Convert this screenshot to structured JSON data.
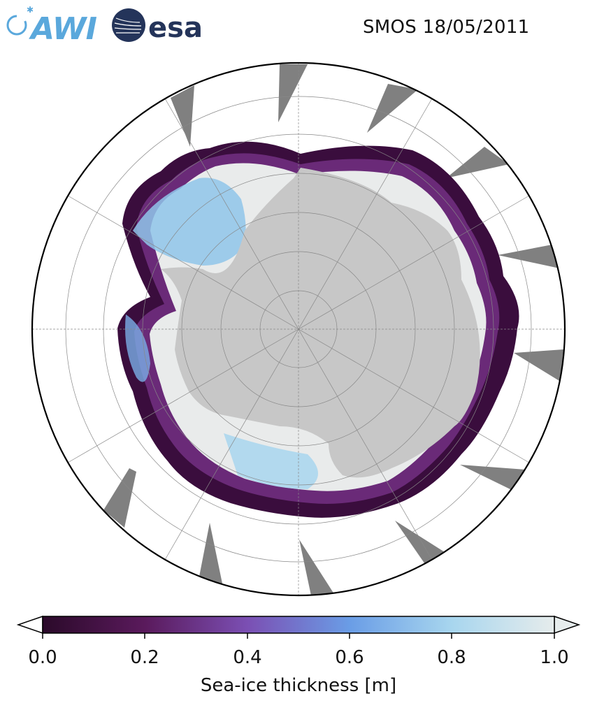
{
  "header": {
    "title": "SMOS 18/05/2011",
    "logo_left_text": "AWI",
    "logo_right_text": "esa"
  },
  "map": {
    "projection": "south-polar-stereographic",
    "latitude_circles": 6,
    "meridians": 12,
    "colors": {
      "land": "#c7c7c7",
      "no_data_wedge": "#808080",
      "ocean": "#ffffff",
      "boundary": "#000000",
      "grid": "#888888"
    }
  },
  "colorbar": {
    "label": "Sea-ice thickness [m]",
    "ticks": [
      "0.0",
      "0.2",
      "0.4",
      "0.6",
      "0.8",
      "1.0"
    ],
    "min": 0.0,
    "max": 1.0,
    "extend": "both",
    "colormap": [
      "#2b0a2a",
      "#5a1a5c",
      "#7b4fb3",
      "#6a9de6",
      "#a8d6ee",
      "#e6ecec"
    ]
  }
}
